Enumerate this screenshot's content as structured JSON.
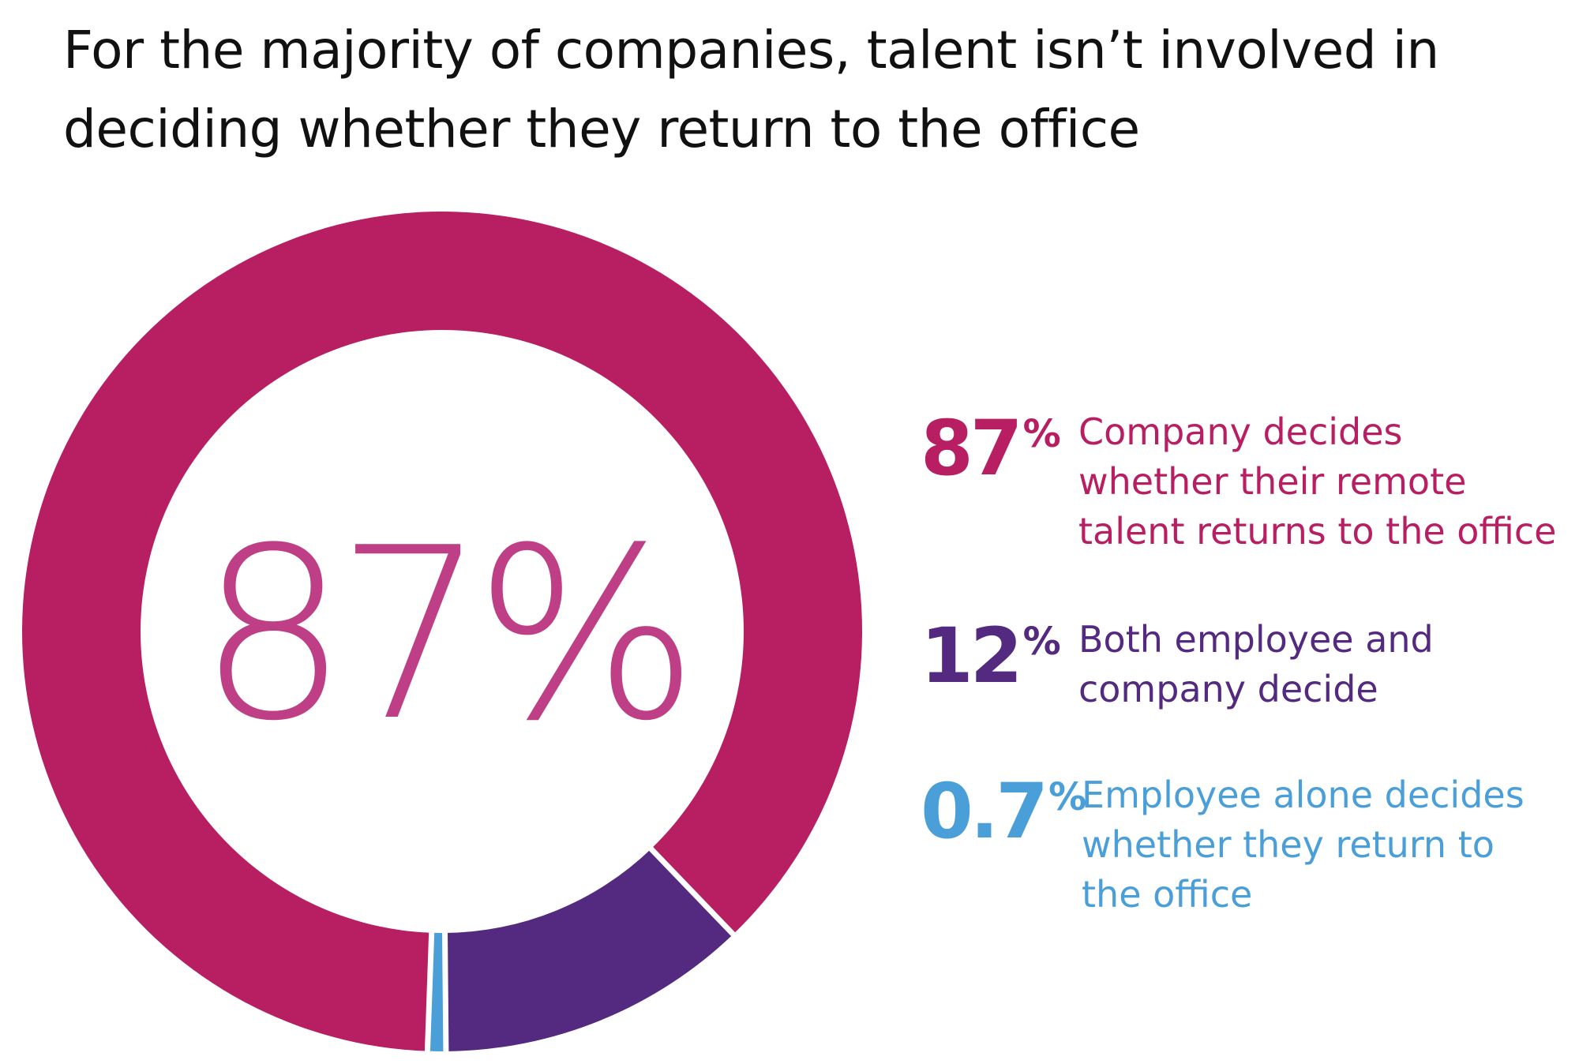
{
  "title_lines": [
    "For the majority of companies, talent isn’t involved in",
    "deciding whether they return to the office"
  ],
  "center_label": "87%",
  "colors": {
    "company": "#b81f63",
    "both": "#532a80",
    "employee": "#4a9fd8",
    "center_text": "#bf3f86",
    "title": "#111111"
  },
  "chart_data": {
    "type": "pie",
    "donut": true,
    "title": "For the majority of companies, talent isn’t involved in deciding whether they return to the office",
    "center_label": "87%",
    "slices": [
      {
        "label": "Company decides whether their remote talent returns to the office",
        "value": 87,
        "display": "87",
        "unit": "%",
        "color": "#b81f63"
      },
      {
        "label": "Both employee and company decide",
        "value": 12,
        "display": "12",
        "unit": "%",
        "color": "#532a80"
      },
      {
        "label": "Employee alone decides whether they return to the office",
        "value": 0.7,
        "display": "0.7",
        "unit": "%",
        "color": "#4a9fd8"
      }
    ],
    "legend": {
      "placement": "right",
      "items": [
        {
          "value": "87",
          "unit": "%",
          "lines": [
            "Company decides",
            "whether their remote",
            "talent returns to the office"
          ]
        },
        {
          "value": "12",
          "unit": "%",
          "lines": [
            "Both employee and",
            "company decide"
          ]
        },
        {
          "value": "0.7",
          "unit": "%",
          "lines": [
            "Employee alone decides",
            "whether they return to",
            "the office"
          ]
        }
      ]
    }
  }
}
